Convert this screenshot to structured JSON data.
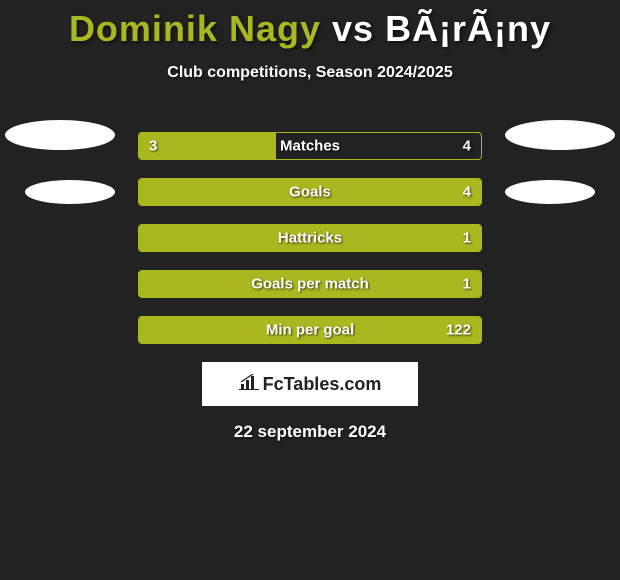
{
  "title": {
    "player_left": "Dominik Nagy",
    "vs": "vs",
    "player_right": "BÃ¡rÃ¡ny",
    "left_color": "#aab820",
    "right_color": "#ffffff"
  },
  "subtitle": "Club competitions, Season 2024/2025",
  "bars": {
    "border_color": "#aab820",
    "fill_color": "#aab820",
    "items": [
      {
        "label": "Matches",
        "left": "3",
        "right": "4",
        "fill_pct": 40
      },
      {
        "label": "Goals",
        "left": "",
        "right": "4",
        "fill_pct": 100
      },
      {
        "label": "Hattricks",
        "left": "",
        "right": "1",
        "fill_pct": 100
      },
      {
        "label": "Goals per match",
        "left": "",
        "right": "1",
        "fill_pct": 100
      },
      {
        "label": "Min per goal",
        "left": "",
        "right": "122",
        "fill_pct": 100
      }
    ]
  },
  "badge": {
    "text": "FcTables.com"
  },
  "date": "22 september 2024",
  "colors": {
    "background": "#222222",
    "accent": "#aab820",
    "text": "#ffffff",
    "shadow": "rgba(0,0,0,0.6)"
  }
}
